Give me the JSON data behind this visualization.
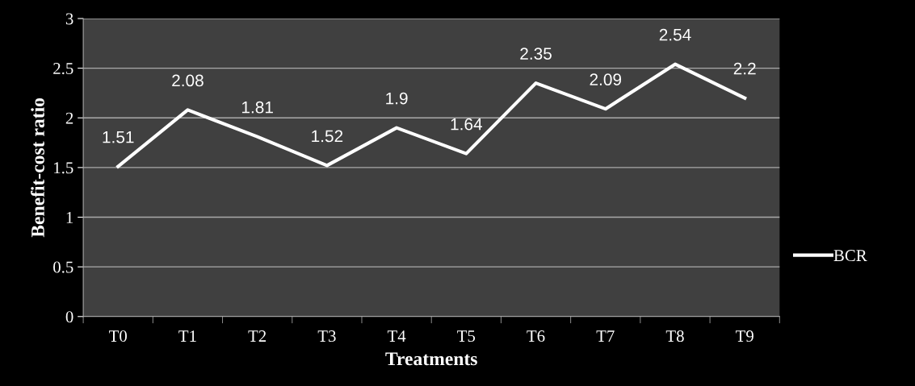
{
  "chart_data": {
    "type": "line",
    "xlabel": "Treatments",
    "ylabel": "Benefit-cost ratio",
    "categories": [
      "T0",
      "T1",
      "T2",
      "T3",
      "T4",
      "T5",
      "T6",
      "T7",
      "T8",
      "T9"
    ],
    "series": [
      {
        "name": "BCR",
        "color": "#ffffff",
        "values": [
          1.51,
          2.08,
          1.81,
          1.52,
          1.9,
          1.64,
          2.35,
          2.09,
          2.54,
          2.2
        ]
      }
    ],
    "ylim": [
      0,
      3
    ],
    "yticks": [
      0,
      0.5,
      1,
      1.5,
      2,
      2.5,
      3
    ],
    "grid": "y",
    "legend": "right",
    "data_labels": true,
    "marker": "none",
    "line_style": "solid"
  }
}
